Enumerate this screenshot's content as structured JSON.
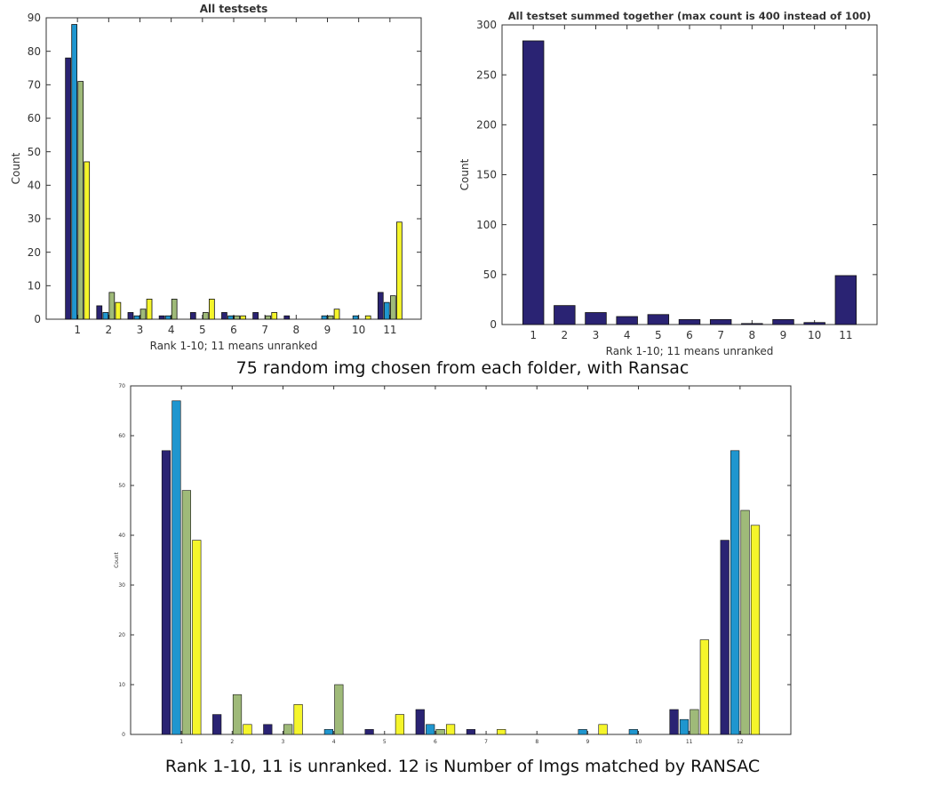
{
  "colors": [
    "#2a2373",
    "#1f96cf",
    "#9fba79",
    "#f5f52b"
  ],
  "captions": {
    "middle": "75 random img chosen from each folder, with Ransac",
    "bottom": "Rank 1-10, 11 is unranked. 12 is Number of Imgs matched by RANSAC"
  },
  "chart_data": [
    {
      "type": "bar",
      "title": "All testsets",
      "xlabel": "Rank 1-10; 11 means unranked",
      "ylabel": "Count",
      "categories": [
        "1",
        "2",
        "3",
        "4",
        "5",
        "6",
        "7",
        "8",
        "9",
        "10",
        "11"
      ],
      "ylim": [
        0,
        90
      ],
      "yticks": [
        0,
        10,
        20,
        30,
        40,
        50,
        60,
        70,
        80,
        90
      ],
      "grid": false,
      "series": [
        {
          "values": [
            78,
            4,
            2,
            1,
            2,
            2,
            2,
            1,
            0,
            0,
            8
          ]
        },
        {
          "values": [
            88,
            2,
            1,
            1,
            0,
            1,
            0,
            0,
            1,
            1,
            5
          ]
        },
        {
          "values": [
            71,
            8,
            3,
            6,
            2,
            1,
            1,
            0,
            1,
            0,
            7
          ]
        },
        {
          "values": [
            47,
            5,
            6,
            0,
            6,
            1,
            2,
            0,
            3,
            1,
            29
          ]
        }
      ]
    },
    {
      "type": "bar",
      "title": "All testset summed together (max count is 400 instead of 100)",
      "xlabel": "Rank 1-10; 11 means unranked",
      "ylabel": "Count",
      "categories": [
        "1",
        "2",
        "3",
        "4",
        "5",
        "6",
        "7",
        "8",
        "9",
        "10",
        "11"
      ],
      "ylim": [
        0,
        300
      ],
      "yticks": [
        0,
        50,
        100,
        150,
        200,
        250,
        300
      ],
      "grid": false,
      "series": [
        {
          "values": [
            284,
            19,
            12,
            8,
            10,
            5,
            5,
            1,
            5,
            2,
            49
          ]
        }
      ]
    },
    {
      "type": "bar",
      "title": "",
      "xlabel": "",
      "ylabel": "Count",
      "categories": [
        "1",
        "2",
        "3",
        "4",
        "5",
        "6",
        "7",
        "8",
        "9",
        "10",
        "11",
        "12"
      ],
      "ylim": [
        0,
        70
      ],
      "yticks": [
        0,
        10,
        20,
        30,
        40,
        50,
        60,
        70
      ],
      "grid": false,
      "series": [
        {
          "values": [
            57,
            4,
            2,
            0,
            1,
            5,
            1,
            0,
            0,
            0,
            5,
            39
          ]
        },
        {
          "values": [
            67,
            0,
            0,
            1,
            0,
            2,
            0,
            0,
            1,
            1,
            3,
            57
          ]
        },
        {
          "values": [
            49,
            8,
            2,
            10,
            0,
            1,
            0,
            0,
            0,
            0,
            5,
            45
          ]
        },
        {
          "values": [
            39,
            2,
            6,
            0,
            4,
            2,
            1,
            0,
            2,
            0,
            19,
            42
          ]
        }
      ]
    }
  ]
}
